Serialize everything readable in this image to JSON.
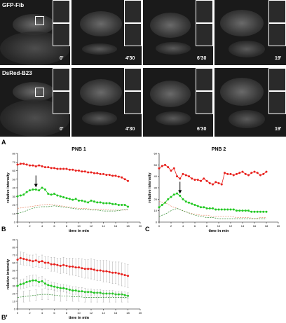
{
  "micrographs": {
    "row1_channel": "GFP-Fib",
    "row2_channel": "DsRed-B23",
    "timepoints": [
      "0'",
      "4'30",
      "6'30",
      "19'"
    ]
  },
  "panel_labels": {
    "A": "A",
    "B": "B",
    "C": "C",
    "Bprime": "B'"
  },
  "colors": {
    "red": "#e8201c",
    "green": "#22c822",
    "red_light": "#e88a6a",
    "green_dark": "#2e8a2e"
  },
  "chart_data": [
    {
      "type": "line",
      "title": "PNB 1",
      "xlabel": "time in min",
      "ylabel": "relative intensity",
      "xlim": [
        0,
        20
      ],
      "ylim": [
        0,
        80
      ],
      "xticks": [
        0,
        2,
        4,
        6,
        8,
        10,
        12,
        14,
        16,
        18,
        20
      ],
      "yticks": [
        0,
        10,
        20,
        30,
        40,
        50,
        60,
        70,
        80
      ],
      "arrow_at": 3,
      "series": [
        {
          "color": "red",
          "style": "marker",
          "x": [
            0,
            0.5,
            1,
            1.5,
            2,
            2.5,
            3,
            3.5,
            4,
            4.5,
            5,
            5.5,
            6,
            6.5,
            7,
            7.5,
            8,
            8.5,
            9,
            9.5,
            10,
            10.5,
            11,
            11.5,
            12,
            12.5,
            13,
            13.5,
            14,
            14.5,
            15,
            15.5,
            16,
            16.5,
            17,
            17.5,
            18
          ],
          "values": [
            67,
            68,
            68,
            67,
            66,
            66,
            65,
            66,
            65,
            64,
            64,
            63,
            63,
            62,
            62,
            62,
            62,
            61,
            61,
            60,
            60,
            59,
            59,
            58,
            58,
            57,
            57,
            56,
            56,
            55,
            55,
            54,
            54,
            53,
            52,
            50,
            48
          ]
        },
        {
          "color": "green",
          "style": "marker",
          "x": [
            0,
            0.5,
            1,
            1.5,
            2,
            2.5,
            3,
            3.5,
            4,
            4.5,
            5,
            5.5,
            6,
            6.5,
            7,
            7.5,
            8,
            8.5,
            9,
            9.5,
            10,
            10.5,
            11,
            11.5,
            12,
            12.5,
            13,
            13.5,
            14,
            14.5,
            15,
            15.5,
            16,
            16.5,
            17,
            17.5,
            18
          ],
          "values": [
            30,
            31,
            32,
            35,
            37,
            38,
            38,
            37,
            40,
            38,
            33,
            32,
            33,
            31,
            30,
            29,
            28,
            27,
            26,
            27,
            25,
            25,
            24,
            23,
            25,
            24,
            23,
            23,
            22,
            22,
            22,
            21,
            21,
            20,
            20,
            20,
            18
          ]
        },
        {
          "color": "red_light",
          "style": "dashed",
          "x": [
            0,
            1,
            2,
            3,
            4,
            5,
            6,
            7,
            8,
            9,
            10,
            11,
            12,
            13,
            14,
            15,
            16,
            17,
            18
          ],
          "values": [
            16,
            17,
            18,
            19,
            20,
            21,
            20,
            19,
            18,
            17,
            16,
            16,
            15,
            15,
            15,
            14,
            14,
            14,
            14
          ]
        },
        {
          "color": "green_dark",
          "style": "dashed",
          "x": [
            0,
            1,
            2,
            3,
            4,
            5,
            6,
            7,
            8,
            9,
            10,
            11,
            12,
            13,
            14,
            15,
            16,
            17,
            18
          ],
          "values": [
            10,
            12,
            15,
            17,
            18,
            18,
            19,
            18,
            17,
            16,
            15,
            15,
            14,
            14,
            13,
            13,
            13,
            14,
            15
          ]
        }
      ]
    },
    {
      "type": "line",
      "title": "PNB 2",
      "xlabel": "time in min",
      "ylabel": "relative intensity",
      "xlim": [
        0,
        20
      ],
      "ylim": [
        0,
        60
      ],
      "xticks": [
        0,
        2,
        4,
        6,
        8,
        10,
        12,
        14,
        16,
        18,
        20
      ],
      "yticks": [
        0,
        10,
        20,
        30,
        40,
        50,
        60
      ],
      "arrow_at": 3.5,
      "series": [
        {
          "color": "red",
          "style": "marker",
          "x": [
            0,
            0.5,
            1,
            1.5,
            2,
            2.5,
            3,
            3.5,
            4,
            4.5,
            5,
            5.5,
            6,
            6.5,
            7,
            7.5,
            8,
            8.5,
            9,
            9.5,
            10,
            10.5,
            11,
            11.5,
            12,
            12.5,
            13,
            13.5,
            14,
            14.5,
            15,
            15.5,
            16,
            16.5,
            17,
            17.5,
            18
          ],
          "values": [
            47,
            49,
            50,
            48,
            45,
            47,
            40,
            38,
            42,
            41,
            40,
            38,
            37,
            37,
            36,
            38,
            36,
            34,
            33,
            35,
            34,
            33,
            43,
            42,
            42,
            41,
            42,
            43,
            44,
            42,
            41,
            43,
            44,
            43,
            41,
            42,
            44
          ]
        },
        {
          "color": "green",
          "style": "marker",
          "x": [
            0,
            0.5,
            1,
            1.5,
            2,
            2.5,
            3,
            3.5,
            4,
            4.5,
            5,
            5.5,
            6,
            6.5,
            7,
            7.5,
            8,
            8.5,
            9,
            9.5,
            10,
            10.5,
            11,
            11.5,
            12,
            12.5,
            13,
            13.5,
            14,
            14.5,
            15,
            15.5,
            16,
            16.5,
            17,
            17.5,
            18
          ],
          "values": [
            13,
            15,
            17,
            20,
            22,
            24,
            25,
            23,
            20,
            18,
            17,
            16,
            15,
            14,
            13,
            13,
            12,
            12,
            12,
            11,
            11,
            11,
            11,
            11,
            11,
            11,
            10,
            10,
            10,
            10,
            10,
            9,
            9,
            9,
            9,
            9,
            9
          ]
        },
        {
          "color": "red_light",
          "style": "dashed",
          "x": [
            0,
            1,
            2,
            3,
            4,
            5,
            6,
            7,
            8,
            9,
            10,
            11,
            12,
            13,
            14,
            15,
            16,
            17,
            18
          ],
          "values": [
            18,
            17,
            14,
            12,
            10,
            8,
            7,
            6,
            6,
            5,
            5,
            5,
            5,
            4,
            4,
            4,
            3,
            4,
            4
          ]
        },
        {
          "color": "green_dark",
          "style": "dashed",
          "x": [
            0,
            1,
            2,
            3,
            4,
            5,
            6,
            7,
            8,
            9,
            10,
            11,
            12,
            13,
            14,
            15,
            16,
            17,
            18
          ],
          "values": [
            5,
            7,
            10,
            12,
            10,
            8,
            6,
            5,
            4,
            4,
            3,
            3,
            3,
            3,
            3,
            3,
            3,
            3,
            3
          ]
        }
      ]
    },
    {
      "type": "line",
      "title": "",
      "xlabel": "time in min",
      "ylabel": "relative intensity",
      "xlim": [
        0,
        20
      ],
      "ylim": [
        0,
        90
      ],
      "xticks": [
        0,
        2,
        4,
        6,
        8,
        10,
        12,
        14,
        16,
        18,
        20
      ],
      "yticks": [
        0,
        10,
        20,
        30,
        40,
        50,
        60,
        70,
        80,
        90
      ],
      "error_bars": true,
      "series": [
        {
          "color": "red",
          "style": "marker_errorbar",
          "x": [
            0,
            0.5,
            1,
            1.5,
            2,
            2.5,
            3,
            3.5,
            4,
            4.5,
            5,
            5.5,
            6,
            6.5,
            7,
            7.5,
            8,
            8.5,
            9,
            9.5,
            10,
            10.5,
            11,
            11.5,
            12,
            12.5,
            13,
            13.5,
            14,
            14.5,
            15,
            15.5,
            16,
            16.5,
            17,
            17.5,
            18
          ],
          "values": [
            64,
            66,
            65,
            64,
            63,
            62,
            63,
            61,
            62,
            60,
            60,
            58,
            58,
            57,
            56,
            57,
            56,
            55,
            55,
            54,
            54,
            53,
            52,
            52,
            52,
            51,
            50,
            50,
            49,
            49,
            48,
            47,
            47,
            46,
            45,
            44,
            43
          ],
          "errors": [
            8,
            8,
            8,
            7,
            7,
            8,
            8,
            7,
            8,
            8,
            8,
            9,
            9,
            9,
            10,
            10,
            10,
            11,
            11,
            11,
            12,
            12,
            12,
            12,
            13,
            13,
            13,
            13,
            14,
            14,
            14,
            14,
            14,
            15,
            15,
            15,
            15
          ]
        },
        {
          "color": "green",
          "style": "marker_errorbar",
          "x": [
            0,
            0.5,
            1,
            1.5,
            2,
            2.5,
            3,
            3.5,
            4,
            4.5,
            5,
            5.5,
            6,
            6.5,
            7,
            7.5,
            8,
            8.5,
            9,
            9.5,
            10,
            10.5,
            11,
            11.5,
            12,
            12.5,
            13,
            13.5,
            14,
            14.5,
            15,
            15.5,
            16,
            16.5,
            17,
            17.5,
            18
          ],
          "values": [
            30,
            32,
            33,
            35,
            36,
            37,
            37,
            35,
            36,
            33,
            31,
            30,
            29,
            28,
            27,
            27,
            26,
            25,
            24,
            24,
            23,
            23,
            22,
            22,
            22,
            21,
            21,
            21,
            20,
            20,
            20,
            20,
            19,
            19,
            19,
            18,
            17
          ],
          "errors": [
            6,
            6,
            6,
            7,
            7,
            7,
            7,
            6,
            6,
            6,
            6,
            5,
            5,
            5,
            5,
            5,
            5,
            5,
            5,
            5,
            5,
            5,
            5,
            4,
            4,
            4,
            4,
            4,
            4,
            4,
            4,
            4,
            4,
            4,
            4,
            4,
            4
          ]
        },
        {
          "color": "green_dark",
          "style": "dashed_errorbar",
          "x": [
            0,
            1,
            2,
            3,
            4,
            5,
            6,
            7,
            8,
            9,
            10,
            11,
            12,
            13,
            14,
            15,
            16,
            17,
            18
          ],
          "values": [
            15,
            16,
            17,
            18,
            19,
            19,
            18,
            17,
            17,
            16,
            16,
            15,
            15,
            15,
            15,
            15,
            15,
            15,
            15
          ],
          "errors": [
            7,
            7,
            7,
            7,
            7,
            7,
            7,
            7,
            6,
            6,
            6,
            6,
            6,
            6,
            6,
            6,
            6,
            6,
            6
          ]
        }
      ]
    }
  ]
}
